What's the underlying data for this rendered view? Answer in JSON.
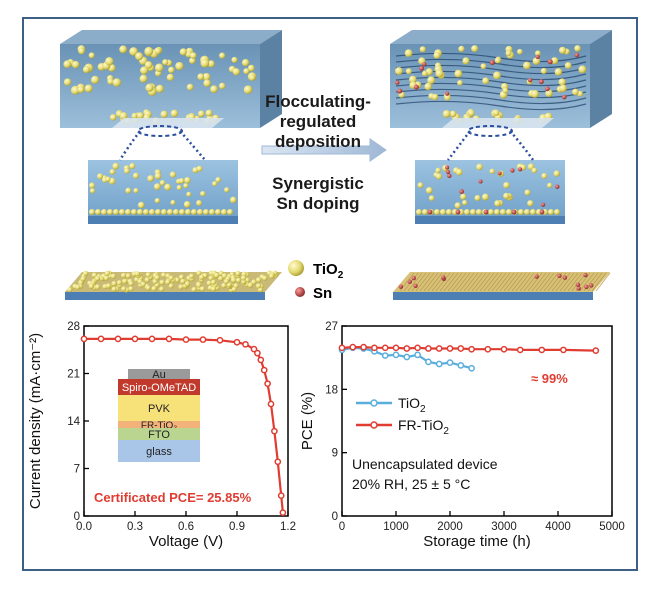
{
  "schematic": {
    "process_lines": [
      "Flocculating-",
      "regulated",
      "deposition"
    ],
    "doping_lines": [
      "Synergistic",
      "Sn doping"
    ],
    "legend": [
      {
        "label_main": "TiO",
        "label_sub": "2",
        "color": "#e8e08a"
      },
      {
        "label_main": "Sn",
        "label_sub": "",
        "color": "#c0504d"
      }
    ]
  },
  "device_stack": {
    "layers": [
      {
        "label": "Au",
        "color": "#9a9a9a"
      },
      {
        "label": "Spiro-OMeTAD",
        "color": "#c0392b"
      },
      {
        "label": "PVK",
        "color": "#f7e27a"
      },
      {
        "label": "FR-TiO₂",
        "color": "#f2b27a"
      },
      {
        "label": "FTO",
        "color": "#b9d58f"
      },
      {
        "label": "glass",
        "color": "#a9c6e8"
      }
    ]
  },
  "chart_data": [
    {
      "type": "line",
      "xlabel": "Voltage (V)",
      "ylabel": "Current density (mA·cm⁻²)",
      "xlim": [
        0.0,
        1.2
      ],
      "ylim": [
        0,
        28
      ],
      "xticks": [
        "0.0",
        "0.3",
        "0.6",
        "0.9",
        "1.2"
      ],
      "yticks": [
        "0",
        "7",
        "14",
        "21",
        "28"
      ],
      "annotation": "Certificated PCE= 25.85%",
      "series": [
        {
          "color": "#e03c31",
          "x": [
            0.0,
            0.1,
            0.2,
            0.3,
            0.4,
            0.5,
            0.6,
            0.7,
            0.8,
            0.9,
            0.95,
            1.0,
            1.02,
            1.04,
            1.06,
            1.08,
            1.1,
            1.12,
            1.14,
            1.16,
            1.17
          ],
          "y": [
            26.1,
            26.1,
            26.1,
            26.1,
            26.1,
            26.1,
            26.0,
            26.0,
            25.9,
            25.6,
            25.3,
            24.6,
            24.0,
            23.0,
            21.5,
            19.5,
            16.5,
            12.5,
            8.0,
            3.0,
            0.5
          ]
        }
      ]
    },
    {
      "type": "line",
      "xlabel": "Storage time (h)",
      "ylabel": "PCE (%)",
      "xlim": [
        0,
        5000
      ],
      "ylim": [
        0,
        27
      ],
      "xticks": [
        "0",
        "1000",
        "2000",
        "3000",
        "4000",
        "5000"
      ],
      "yticks": [
        "0",
        "9",
        "18",
        "27"
      ],
      "legend_position": "middle-left",
      "annotations": [
        "≈ 99%",
        "Unencapsulated device",
        "20% RH, 25 ± 5 °C"
      ],
      "series": [
        {
          "name_main": "TiO",
          "name_sub": "2",
          "color": "#5aaede",
          "x": [
            0,
            200,
            400,
            600,
            800,
            1000,
            1200,
            1400,
            1600,
            1800,
            2000,
            2200,
            2400
          ],
          "y": [
            23.6,
            23.9,
            23.8,
            23.4,
            22.8,
            22.9,
            22.6,
            22.9,
            21.9,
            21.6,
            21.8,
            21.4,
            21.0
          ]
        },
        {
          "name_main": "FR-TiO",
          "name_sub": "2",
          "color": "#e03c31",
          "x": [
            0,
            200,
            400,
            600,
            800,
            1000,
            1200,
            1400,
            1600,
            1800,
            2000,
            2200,
            2400,
            2700,
            3000,
            3300,
            3700,
            4100,
            4700
          ],
          "y": [
            23.9,
            24.0,
            24.0,
            23.9,
            23.9,
            23.9,
            23.8,
            23.9,
            23.8,
            23.8,
            23.8,
            23.8,
            23.7,
            23.7,
            23.7,
            23.6,
            23.6,
            23.6,
            23.5
          ]
        }
      ]
    }
  ]
}
